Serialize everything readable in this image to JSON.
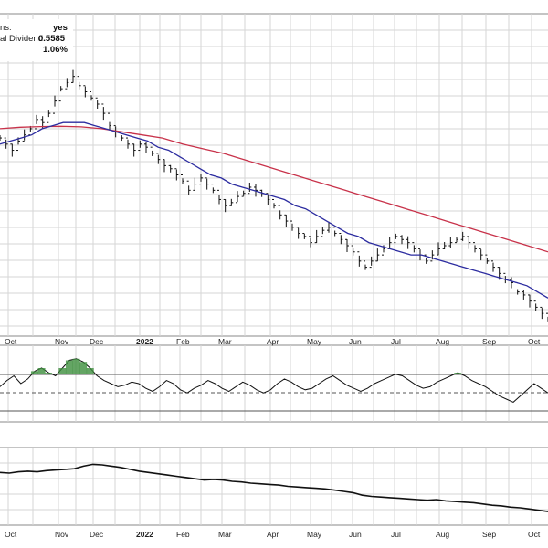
{
  "info_rows": [
    {
      "label": "ns:",
      "value": "yes"
    },
    {
      "label": "al Dividend:",
      "value": "0.5585"
    },
    {
      "label": "",
      "value": "1.06%"
    }
  ],
  "chart_data": [
    {
      "type": "line",
      "title": "",
      "kind": "price bar chart (OHLC) with moving averages",
      "colors": {
        "price": "#111111",
        "ma_short": "#2c2ca0",
        "ma_long": "#c8324a",
        "grid": "#d6d6d6"
      },
      "x_tick_labels": [
        "Oct",
        "Nov",
        "Dec",
        "2022",
        "Feb",
        "Mar",
        "Apr",
        "May",
        "Jun",
        "Jul",
        "Aug",
        "Sep",
        "Oct"
      ],
      "y_tick_labels": [],
      "grid": true,
      "series": [
        {
          "values": [
            62,
            60,
            58,
            61,
            63,
            65,
            68,
            67,
            70,
            74,
            78,
            80,
            82,
            79,
            77,
            75,
            73,
            70,
            66,
            64,
            62,
            60,
            58,
            60,
            59,
            57,
            55,
            53,
            52,
            50,
            48,
            45,
            47,
            49,
            47,
            45,
            42,
            40,
            41,
            43,
            44,
            46,
            45,
            44,
            42,
            40,
            37,
            35,
            33,
            31,
            30,
            28,
            30,
            32,
            33,
            31,
            29,
            27,
            25,
            22,
            20,
            22,
            24,
            26,
            28,
            30,
            29,
            28,
            26,
            24,
            22,
            24,
            26,
            27,
            28,
            29,
            30,
            28,
            26,
            24,
            22,
            20,
            18,
            16,
            15,
            12,
            11,
            9,
            7,
            5,
            3
          ]
        },
        {
          "values": [
            60,
            61,
            62,
            63,
            65,
            66,
            67,
            67,
            67,
            66,
            65,
            64,
            63,
            62,
            61,
            59,
            58,
            56,
            54,
            52,
            50,
            49,
            47,
            46,
            45,
            44,
            43,
            42,
            40,
            39,
            37,
            35,
            33,
            31,
            30,
            28,
            27,
            26,
            25,
            24,
            24,
            23,
            22,
            21,
            20,
            19,
            18,
            17,
            16,
            15,
            14,
            12,
            10
          ]
        },
        {
          "values": [
            65,
            65.5,
            65.7,
            65.8,
            65.6,
            65,
            64,
            63,
            62,
            60,
            58.5,
            57,
            55,
            53,
            51,
            49,
            47,
            45,
            43,
            41,
            39,
            37,
            35,
            33,
            31,
            29,
            27,
            25
          ]
        }
      ]
    },
    {
      "type": "line",
      "title": "",
      "kind": "oscillator panel",
      "colors": {
        "line": "#111111",
        "overbought": "#3d8f3d",
        "oversold": "#b05050"
      },
      "x_tick_labels": [],
      "y_tick_labels": [],
      "grid": true,
      "series": [
        {
          "values": [
            48,
            52,
            55,
            50,
            53,
            58,
            60,
            57,
            55,
            60,
            65,
            66,
            64,
            60,
            55,
            52,
            50,
            48,
            49,
            51,
            50,
            47,
            45,
            48,
            52,
            50,
            46,
            44,
            47,
            49,
            52,
            50,
            47,
            45,
            48,
            51,
            49,
            46,
            44,
            46,
            50,
            53,
            51,
            48,
            46,
            47,
            50,
            53,
            55,
            52,
            49,
            47,
            45,
            47,
            50,
            52,
            54,
            56,
            55,
            52,
            49,
            47,
            48,
            51,
            53,
            55,
            57,
            55,
            52,
            50,
            48,
            45,
            42,
            40,
            38,
            42,
            46,
            50,
            47,
            44
          ]
        }
      ]
    },
    {
      "type": "line",
      "title": "",
      "kind": "indicator panel",
      "colors": {
        "line": "#111111"
      },
      "x_tick_labels": [
        "Oct",
        "Nov",
        "Dec",
        "2022",
        "Feb",
        "Mar",
        "Apr",
        "May",
        "Jun",
        "Jul",
        "Aug",
        "Sep",
        "Oct"
      ],
      "y_tick_labels": [],
      "grid": true,
      "series": [
        {
          "values": [
            72,
            71,
            73,
            74,
            73,
            75,
            76,
            77,
            78,
            82,
            85,
            84,
            82,
            80,
            77,
            74,
            72,
            70,
            68,
            66,
            64,
            62,
            60,
            61,
            60,
            58,
            57,
            55,
            54,
            53,
            52,
            50,
            49,
            48,
            47,
            46,
            44,
            42,
            40,
            36,
            34,
            33,
            32,
            31,
            30,
            29,
            28,
            29,
            27,
            26,
            25,
            24,
            22,
            20,
            19,
            17,
            16,
            14,
            12,
            10
          ]
        }
      ]
    }
  ]
}
